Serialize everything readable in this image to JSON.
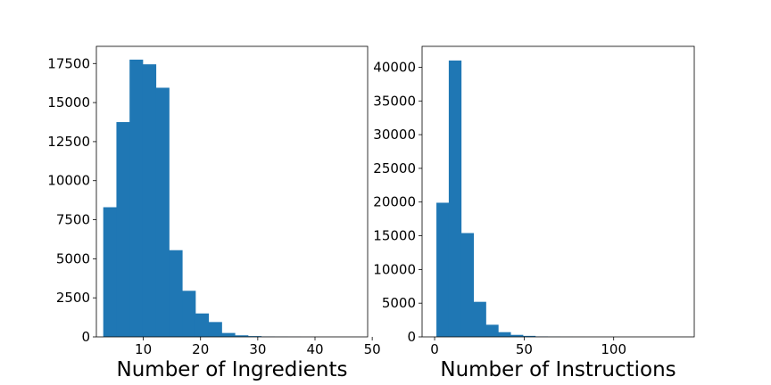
{
  "chart_data": [
    {
      "type": "histogram",
      "title": "",
      "xlabel": "Number of Ingredients",
      "ylabel": "",
      "xlim": [
        1.8,
        49.2
      ],
      "ylim": [
        0,
        18600
      ],
      "xticks": [
        10,
        20,
        30,
        40,
        50
      ],
      "yticks": [
        0,
        2500,
        5000,
        7500,
        10000,
        12500,
        15000,
        17500
      ],
      "grid": false,
      "color": "#1f77b4",
      "bin_start": 3,
      "bin_width": 2.3,
      "values": [
        8300,
        13750,
        17750,
        17450,
        15950,
        5550,
        2950,
        1500,
        950,
        250,
        100,
        50,
        20,
        10,
        5,
        0,
        0,
        0,
        0,
        0
      ]
    },
    {
      "type": "histogram",
      "title": "",
      "xlabel": "Number of Instructions",
      "ylabel": "",
      "xlim": [
        -7,
        145
      ],
      "ylim": [
        0,
        43100
      ],
      "xticks": [
        0,
        50,
        100
      ],
      "yticks": [
        0,
        5000,
        10000,
        15000,
        20000,
        25000,
        30000,
        35000,
        40000
      ],
      "grid": false,
      "color": "#1f77b4",
      "bin_start": 1,
      "bin_width": 6.9,
      "values": [
        19900,
        41000,
        15400,
        5200,
        1800,
        700,
        300,
        150,
        60,
        25,
        10,
        5,
        0,
        0,
        0,
        0,
        0,
        0,
        0,
        0
      ]
    }
  ]
}
